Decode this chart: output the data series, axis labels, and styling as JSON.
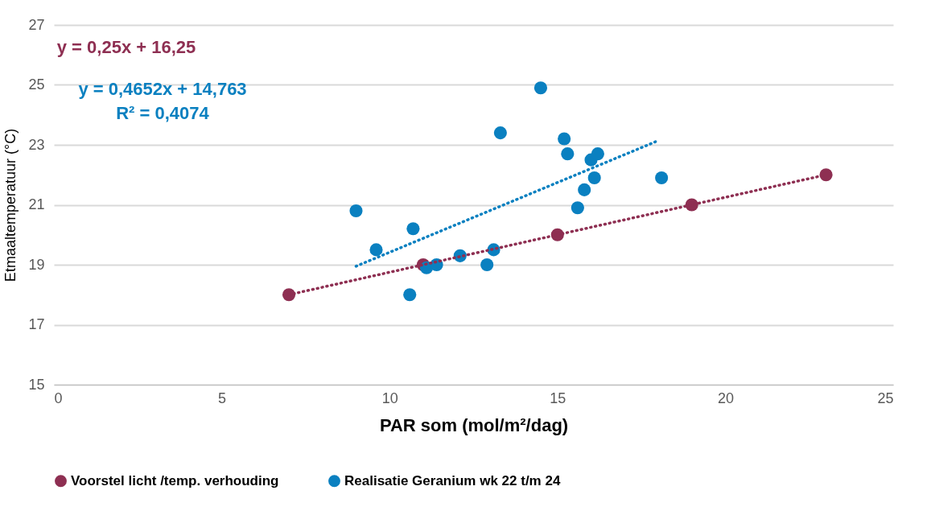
{
  "chart_data": {
    "type": "scatter",
    "xlabel": "PAR som (mol/m²/dag)",
    "ylabel": "Etmaaltemperatuur (°C)",
    "xlim": [
      0,
      25
    ],
    "xticks": [
      0,
      5,
      10,
      15,
      20,
      25
    ],
    "ylim": [
      15,
      27
    ],
    "yticks": [
      15,
      17,
      19,
      21,
      23,
      25,
      27
    ],
    "grid": "y",
    "legend": "bottom",
    "marker": "circle",
    "annotations": [
      "y = 0,25x + 16,25",
      "y = 0,4652x + 14,763\nR² = 0,4074"
    ],
    "series": [
      {
        "name": "Voorstel licht /temp. verhouding",
        "color": "#8e2f52",
        "x": [
          7,
          11,
          15,
          19,
          23
        ],
        "values": [
          18,
          19,
          20,
          21,
          22
        ]
      },
      {
        "name": "Realisatie Geranium wk 22 t/m 24",
        "color": "#0a80c0",
        "x": [
          9.0,
          9.6,
          10.7,
          10.6,
          11.1,
          11.4,
          12.1,
          12.9,
          13.1,
          13.3,
          14.5,
          15.2,
          15.3,
          15.6,
          15.8,
          16.0,
          16.1,
          16.2,
          18.1
        ],
        "values": [
          20.8,
          19.5,
          20.2,
          18.0,
          18.9,
          19.0,
          19.3,
          19.0,
          19.5,
          23.4,
          24.9,
          23.2,
          22.7,
          20.9,
          21.5,
          22.5,
          21.9,
          22.7,
          21.9
        ]
      },
      {
        "type": "line",
        "color": "#8e2f52",
        "line_style": "dotted",
        "marker": "none",
        "x": [
          7,
          23
        ],
        "values": [
          18,
          22
        ]
      },
      {
        "type": "line",
        "color": "#0a80c0",
        "line_style": "dotted",
        "marker": "none",
        "x": [
          9,
          18
        ],
        "values": [
          18.95,
          23.14
        ]
      }
    ]
  }
}
